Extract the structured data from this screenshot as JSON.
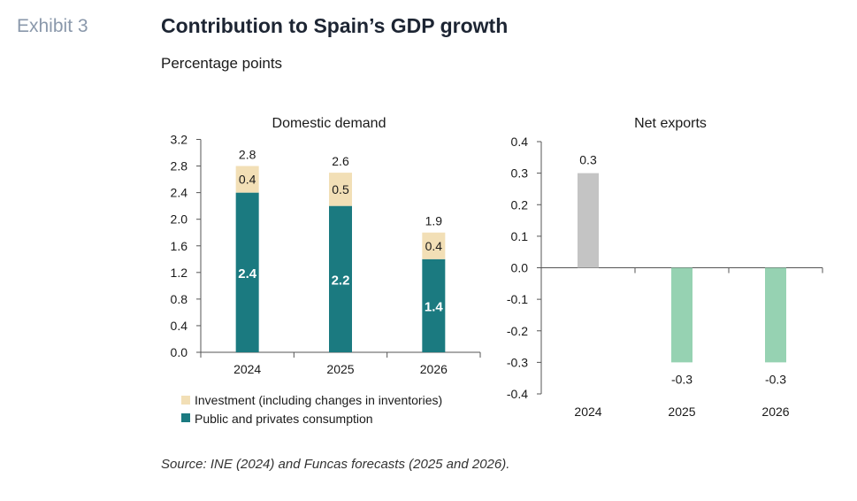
{
  "header": {
    "exhibit": "Exhibit 3",
    "title": "Contribution to Spain’s GDP growth",
    "subtitle": "Percentage points"
  },
  "footer": {
    "source": "Source: INE (2024) and Funcas forecasts (2025 and 2026)."
  },
  "colors": {
    "consumption": "#1b7a80",
    "investment": "#f2dfb6",
    "net_exports_2024": "#c4c4c4",
    "net_exports_forecast": "#96d2b2",
    "axis": "#555555"
  },
  "chart_data": [
    {
      "type": "bar",
      "stacked": true,
      "title": "Domestic demand",
      "categories": [
        "2024",
        "2025",
        "2026"
      ],
      "series": [
        {
          "name": "Public and privates consumption",
          "values": [
            2.4,
            2.2,
            1.4
          ]
        },
        {
          "name": "Investment (including changes in inventories)",
          "values": [
            0.4,
            0.5,
            0.4
          ]
        }
      ],
      "totals": [
        2.8,
        2.6,
        1.9
      ],
      "ylim": [
        0,
        3.2
      ],
      "yticks": [
        "0.0",
        "0.4",
        "0.8",
        "1.2",
        "1.6",
        "2.0",
        "2.4",
        "2.8",
        "3.2"
      ],
      "legend_position": "bottom-left",
      "legend_order": [
        "Investment (including changes in inventories)",
        "Public and privates consumption"
      ]
    },
    {
      "type": "bar",
      "title": "Net exports",
      "categories": [
        "2024",
        "2025",
        "2026"
      ],
      "values": [
        0.3,
        -0.3,
        -0.3
      ],
      "value_labels": [
        "0.3",
        "-0.3",
        "-0.3"
      ],
      "ylim": [
        -0.4,
        0.4
      ],
      "yticks": [
        "0.4",
        "0.3",
        "0.2",
        "0.1",
        "0.0",
        "-0.1",
        "-0.2",
        "-0.3",
        "-0.4"
      ]
    }
  ]
}
